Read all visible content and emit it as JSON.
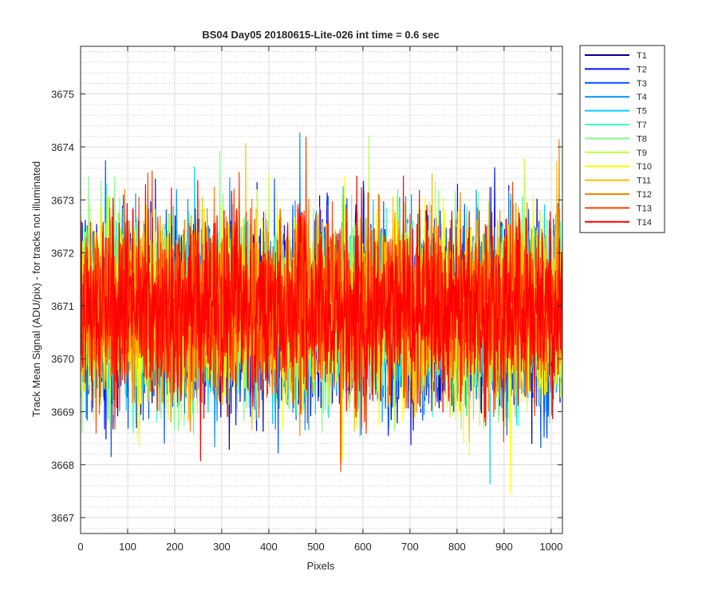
{
  "chart_data": {
    "type": "line",
    "title": "BS04 Day05 20180615-Lite-026 int time = 0.6 sec",
    "xlabel": "Pixels",
    "ylabel": "Track Mean Signal (ADU/pix) - for tracks not illuminated",
    "xlim": [
      0,
      1024
    ],
    "ylim": [
      3666.7,
      3675.9
    ],
    "xticks": [
      0,
      100,
      200,
      300,
      400,
      500,
      600,
      700,
      800,
      900,
      1000
    ],
    "yticks": [
      3667,
      3668,
      3669,
      3670,
      3671,
      3672,
      3673,
      3674,
      3675
    ],
    "grid": true,
    "minor_grid": true,
    "legend_position": "outside-top-right",
    "n_points": 1024,
    "series": [
      {
        "name": "T1",
        "color": "#00008f",
        "mean": 3670.7,
        "std": 0.85
      },
      {
        "name": "T2",
        "color": "#0010ff",
        "mean": 3670.8,
        "std": 0.85
      },
      {
        "name": "T3",
        "color": "#0050ff",
        "mean": 3670.8,
        "std": 0.85
      },
      {
        "name": "T4",
        "color": "#0090ff",
        "mean": 3670.9,
        "std": 0.85
      },
      {
        "name": "T5",
        "color": "#00cfff",
        "mean": 3670.9,
        "std": 0.85
      },
      {
        "name": "T7",
        "color": "#40ffbf",
        "mean": 3670.9,
        "std": 0.85
      },
      {
        "name": "T8",
        "color": "#80ff80",
        "mean": 3670.9,
        "std": 0.85
      },
      {
        "name": "T9",
        "color": "#bfff40",
        "mean": 3670.9,
        "std": 0.85
      },
      {
        "name": "T10",
        "color": "#ffff00",
        "mean": 3670.9,
        "std": 0.85
      },
      {
        "name": "T11",
        "color": "#ffbf00",
        "mean": 3670.9,
        "std": 0.85
      },
      {
        "name": "T12",
        "color": "#ff8000",
        "mean": 3670.95,
        "std": 0.85
      },
      {
        "name": "T13",
        "color": "#ff4000",
        "mean": 3671.0,
        "std": 0.85
      },
      {
        "name": "T14",
        "color": "#ff0000",
        "mean": 3671.0,
        "std": 0.85
      }
    ]
  }
}
